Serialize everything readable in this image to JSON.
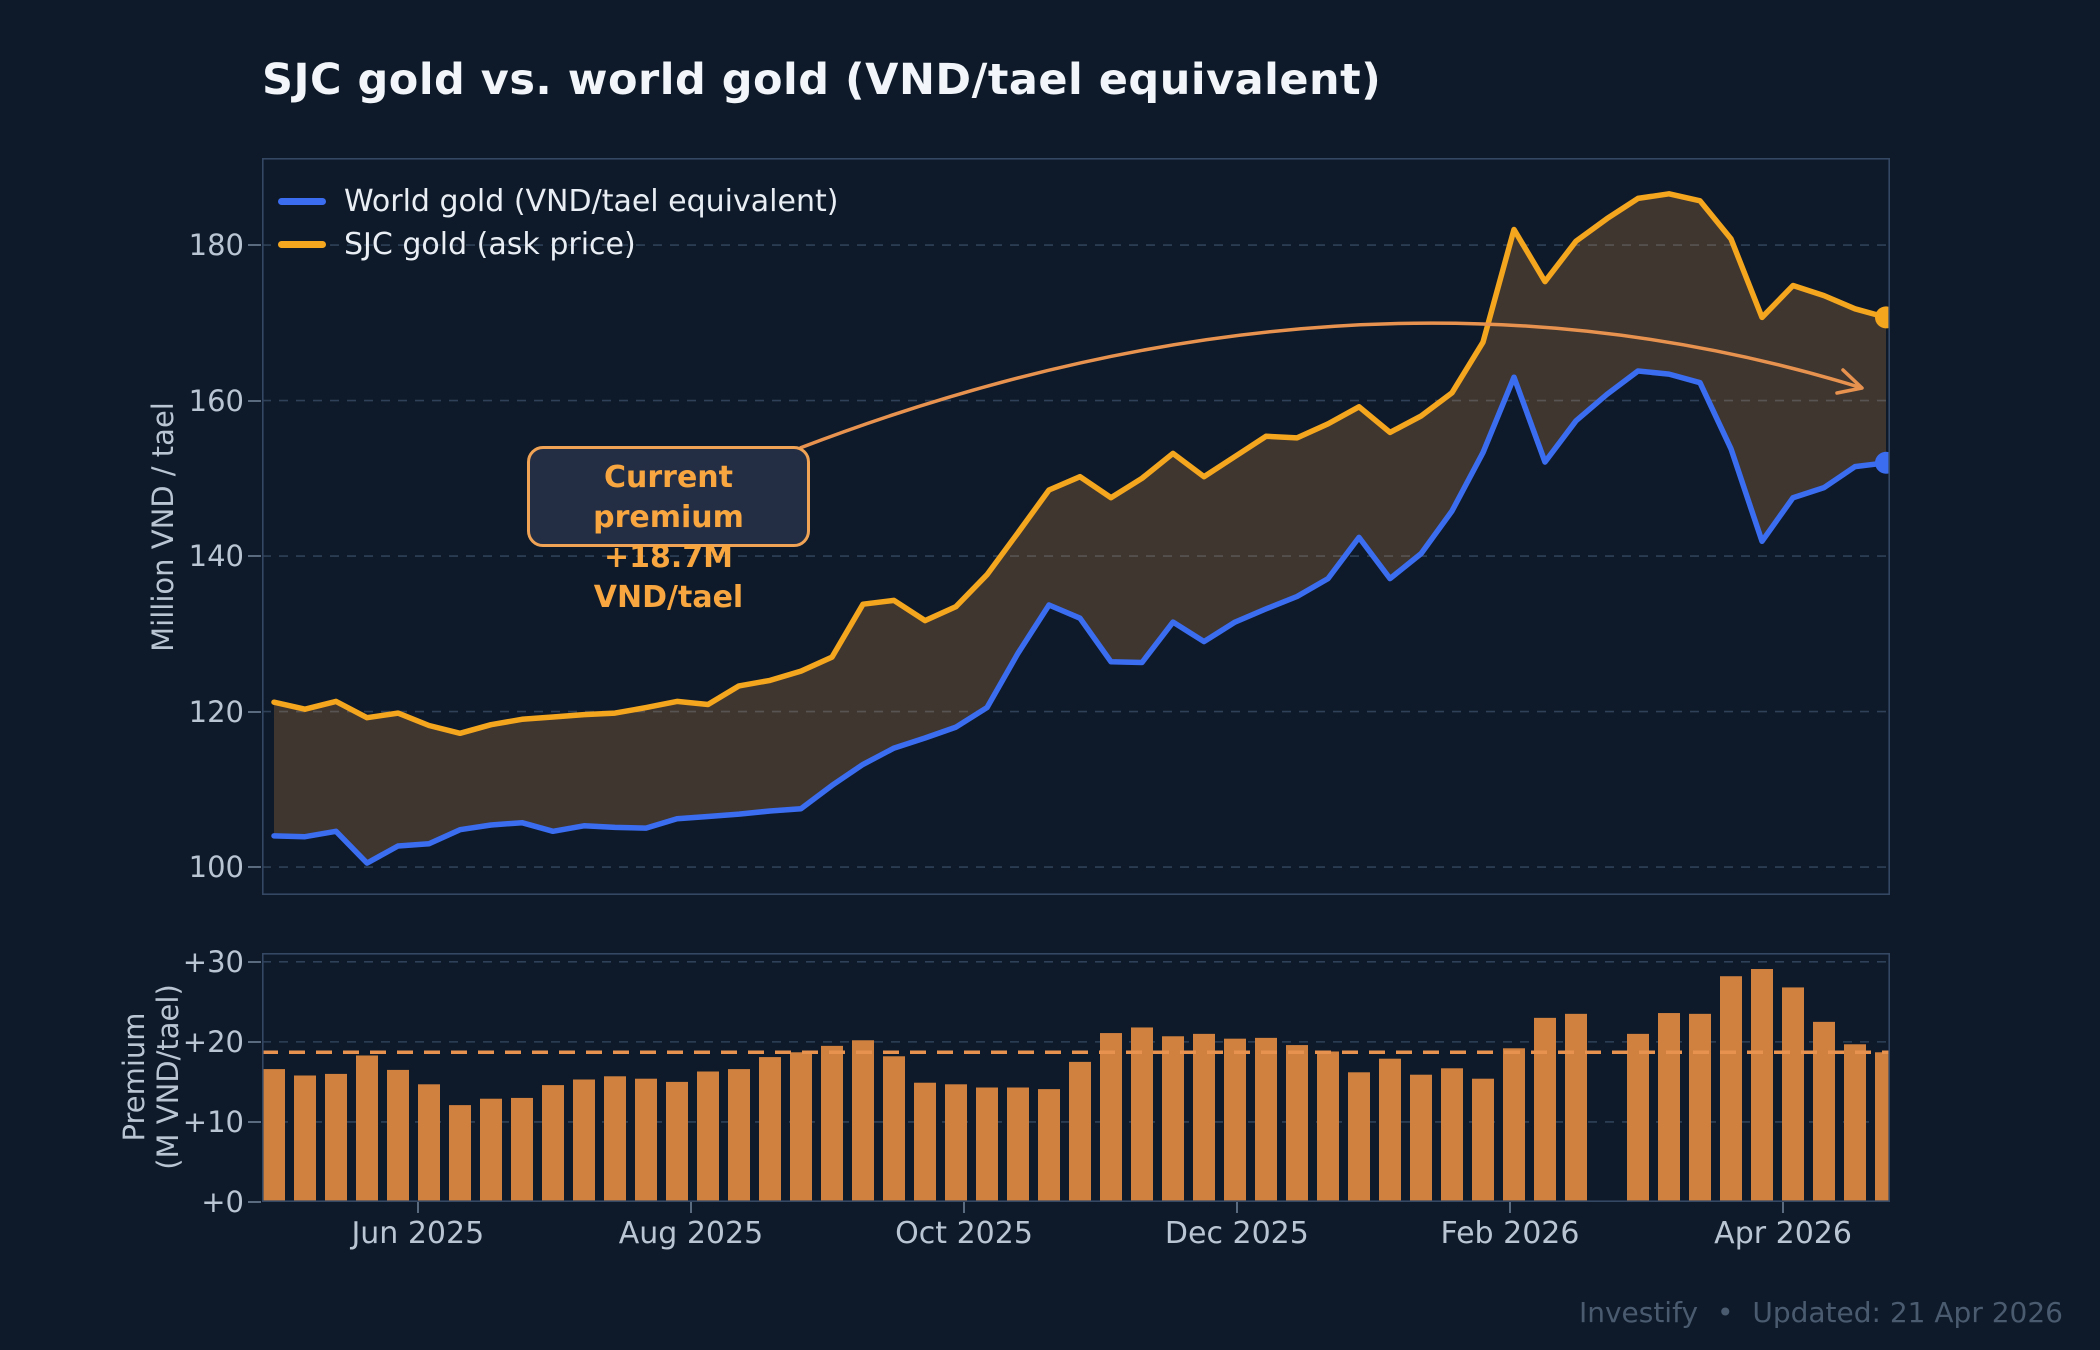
{
  "title": "SJC gold vs. world gold (VND/tael equivalent)",
  "annotation": {
    "line1": "Current premium",
    "line2": "+18.7M VND/tael",
    "value": 18.7
  },
  "footer": {
    "brand": "Investify",
    "separator": "•",
    "updated": "Updated: 21 Apr 2026"
  },
  "colors": {
    "background": "#0e1a29",
    "panel_border": "#344763",
    "gridline": "#2e4158",
    "tick_text": "#b9c5d3",
    "title_text": "#f2f6fa",
    "legend_text": "#e9eef5",
    "world_line": "#3b6df0",
    "sjc_line": "#f4a61f",
    "band_fill": "rgba(243,156,70,0.22)",
    "bar": "#d0813f",
    "reference_line": "#e8924f",
    "arrow": "#e8924f",
    "annotation_border": "#f0a355",
    "annotation_text": "#f7a640",
    "footer_text": "#4a5b70"
  },
  "chart_data": [
    {
      "type": "line",
      "title": "SJC gold vs. world gold (VND/tael equivalent)",
      "ylabel": "Million VND / tael",
      "ylim": [
        96.4,
        191.2
      ],
      "grid": true,
      "legend_position": "top-left",
      "yticks": [
        {
          "value": 180,
          "label": "180"
        },
        {
          "value": 160,
          "label": "160"
        },
        {
          "value": 140,
          "label": "140"
        },
        {
          "value": 120,
          "label": "120"
        },
        {
          "value": 100,
          "label": "100"
        }
      ],
      "x_ticks": [
        {
          "label": "Jun 2025",
          "pos": 4.64
        },
        {
          "label": "Aug 2025",
          "pos": 13.45
        },
        {
          "label": "Oct 2025",
          "pos": 22.26
        },
        {
          "label": "Dec 2025",
          "pos": 31.06
        },
        {
          "label": "Feb 2026",
          "pos": 39.87
        },
        {
          "label": "Apr 2026",
          "pos": 48.68
        }
      ],
      "series": [
        {
          "name": "World gold (VND/tael equivalent)",
          "color": "#3b6df0",
          "end_marker": true,
          "values": [
            104.0,
            103.9,
            104.6,
            100.5,
            102.7,
            103.0,
            104.8,
            105.4,
            105.7,
            104.6,
            105.3,
            105.1,
            105.0,
            106.2,
            106.5,
            106.8,
            107.2,
            107.5,
            110.5,
            113.2,
            115.3,
            116.6,
            118.0,
            120.5,
            127.5,
            133.7,
            132.0,
            126.4,
            126.3,
            131.5,
            129.0,
            131.5,
            133.2,
            134.8,
            137.1,
            142.4,
            137.1,
            140.3,
            145.8,
            153.3,
            163.0,
            152.1,
            157.4,
            160.8,
            163.8,
            163.4,
            162.3,
            153.8,
            141.9,
            147.5,
            148.8,
            151.5,
            152.0
          ]
        },
        {
          "name": "SJC gold (ask price)",
          "color": "#f4a61f",
          "end_marker": true,
          "values": [
            121.2,
            120.3,
            121.3,
            119.2,
            119.8,
            118.2,
            117.2,
            118.3,
            119.0,
            119.3,
            119.6,
            119.8,
            120.5,
            121.3,
            120.9,
            123.3,
            124.0,
            125.2,
            127.0,
            133.8,
            134.3,
            131.7,
            133.5,
            137.6,
            143.0,
            148.5,
            150.2,
            147.5,
            150.0,
            153.2,
            150.2,
            152.8,
            155.4,
            155.2,
            157.0,
            159.2,
            155.9,
            158.0,
            161.0,
            167.5,
            182.0,
            175.3,
            180.5,
            183.4,
            186.0,
            186.6,
            185.7,
            180.8,
            170.7,
            174.8,
            173.5,
            171.8,
            170.7
          ]
        }
      ],
      "fill_between_series": true
    },
    {
      "type": "bar",
      "ylabel": "Premium (M VND/tael)",
      "ylabel_lines": [
        "Premium",
        "(M VND/tael)"
      ],
      "ylim": [
        0,
        31.1
      ],
      "grid": true,
      "reference_line": 18.7,
      "yticks": [
        {
          "value": 30,
          "label": "+30"
        },
        {
          "value": 20,
          "label": "+20"
        },
        {
          "value": 10,
          "label": "+10"
        },
        {
          "value": 0,
          "label": "+0"
        }
      ],
      "values": [
        16.6,
        15.8,
        16.0,
        18.3,
        16.5,
        14.7,
        12.1,
        12.9,
        13.0,
        14.6,
        15.3,
        15.7,
        15.4,
        15.0,
        16.3,
        16.6,
        18.1,
        18.7,
        19.5,
        20.2,
        18.2,
        14.9,
        14.7,
        14.3,
        14.3,
        14.1,
        17.5,
        21.1,
        21.8,
        20.7,
        21.0,
        20.4,
        20.5,
        19.6,
        18.8,
        16.2,
        17.9,
        15.9,
        16.7,
        15.4,
        19.2,
        23.0,
        23.5,
        null,
        21.0,
        23.6,
        23.5,
        28.2,
        29.1,
        26.8,
        22.5,
        19.7,
        18.7
      ]
    }
  ]
}
